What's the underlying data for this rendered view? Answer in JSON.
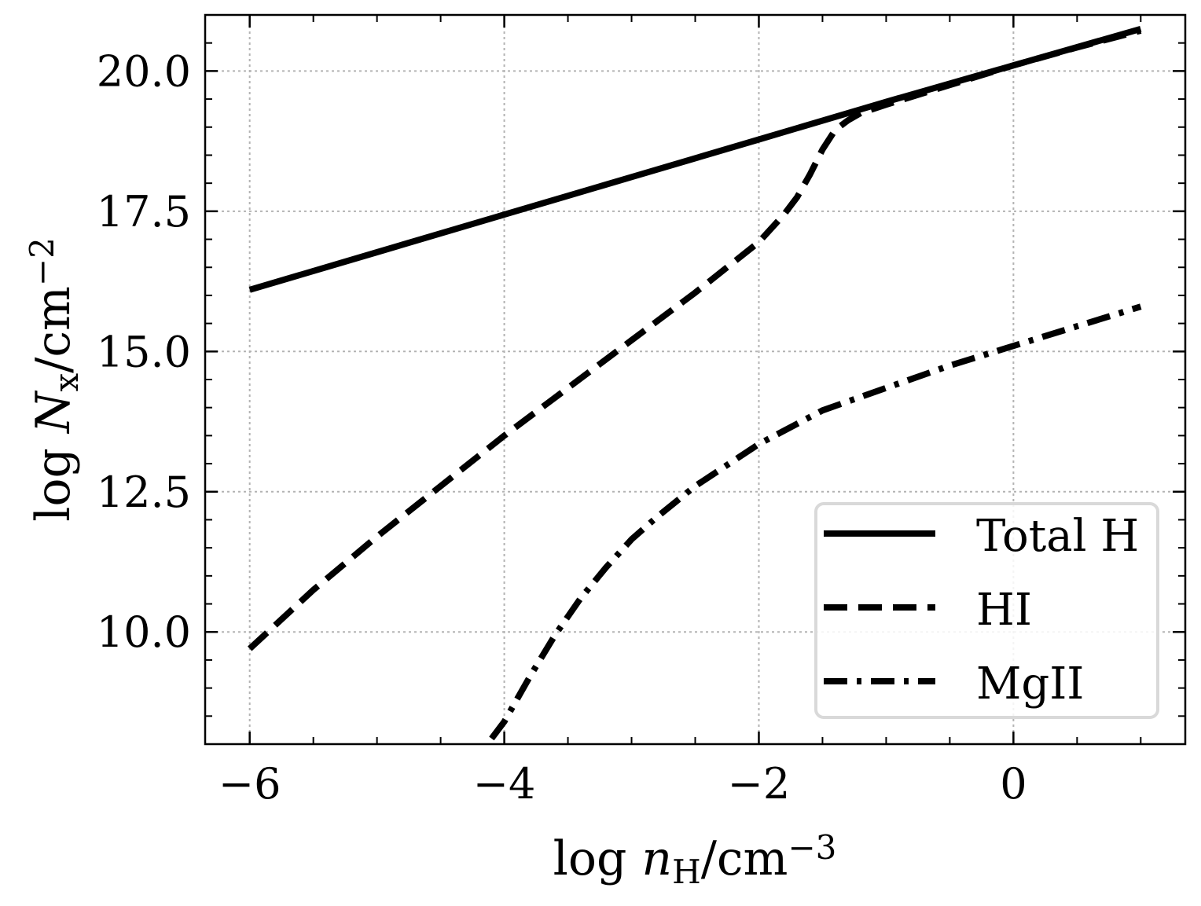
{
  "chart_data": {
    "type": "line",
    "xlabel": {
      "prefix": "log ",
      "var": "n",
      "sub": "H",
      "unit": "/cm",
      "sup": "−3"
    },
    "ylabel": {
      "prefix": "log ",
      "var": "N",
      "sub": "x",
      "unit": "/cm",
      "sup": "−2"
    },
    "xlim": [
      -6.35,
      1.35
    ],
    "ylim": [
      8.0,
      21.0
    ],
    "xticks": [
      -6,
      -4,
      -2,
      0
    ],
    "xtick_labels": [
      "−6",
      "−4",
      "−2",
      "0"
    ],
    "yticks": [
      10.0,
      12.5,
      15.0,
      17.5,
      20.0
    ],
    "ytick_labels": [
      "10.0",
      "12.5",
      "15.0",
      "17.5",
      "20.0"
    ],
    "x_minor_step": 0.5,
    "y_minor_step": 0.5,
    "grid": true,
    "legend_position": "bottom-right",
    "series": [
      {
        "name": "Total H",
        "style": "solid",
        "x": [
          -6.0,
          -5.0,
          -4.0,
          -3.0,
          -2.0,
          -1.0,
          0.0,
          1.0
        ],
        "y": [
          16.1,
          16.77,
          17.44,
          18.11,
          18.78,
          19.45,
          20.1,
          20.75
        ]
      },
      {
        "name": "HI",
        "style": "dashed",
        "x": [
          -6.0,
          -5.5,
          -5.0,
          -4.5,
          -4.0,
          -3.5,
          -3.0,
          -2.5,
          -2.0,
          -1.8,
          -1.7,
          -1.6,
          -1.5,
          -1.4,
          -1.3,
          -1.2,
          -1.0,
          -0.5,
          0.0,
          0.5,
          1.0
        ],
        "y": [
          9.7,
          10.75,
          11.7,
          12.6,
          13.5,
          14.35,
          15.2,
          16.05,
          16.95,
          17.45,
          17.75,
          18.15,
          18.6,
          18.95,
          19.12,
          19.25,
          19.4,
          19.75,
          20.1,
          20.42,
          20.72
        ]
      },
      {
        "name": "MgII",
        "style": "dashdot",
        "x": [
          -4.1,
          -4.0,
          -3.8,
          -3.6,
          -3.4,
          -3.2,
          -3.0,
          -2.8,
          -2.5,
          -2.0,
          -1.5,
          -1.0,
          -0.5,
          0.0,
          0.5,
          1.0
        ],
        "y": [
          8.1,
          8.4,
          9.2,
          9.95,
          10.6,
          11.15,
          11.65,
          12.05,
          12.6,
          13.35,
          13.95,
          14.35,
          14.75,
          15.1,
          15.45,
          15.8
        ]
      }
    ]
  }
}
